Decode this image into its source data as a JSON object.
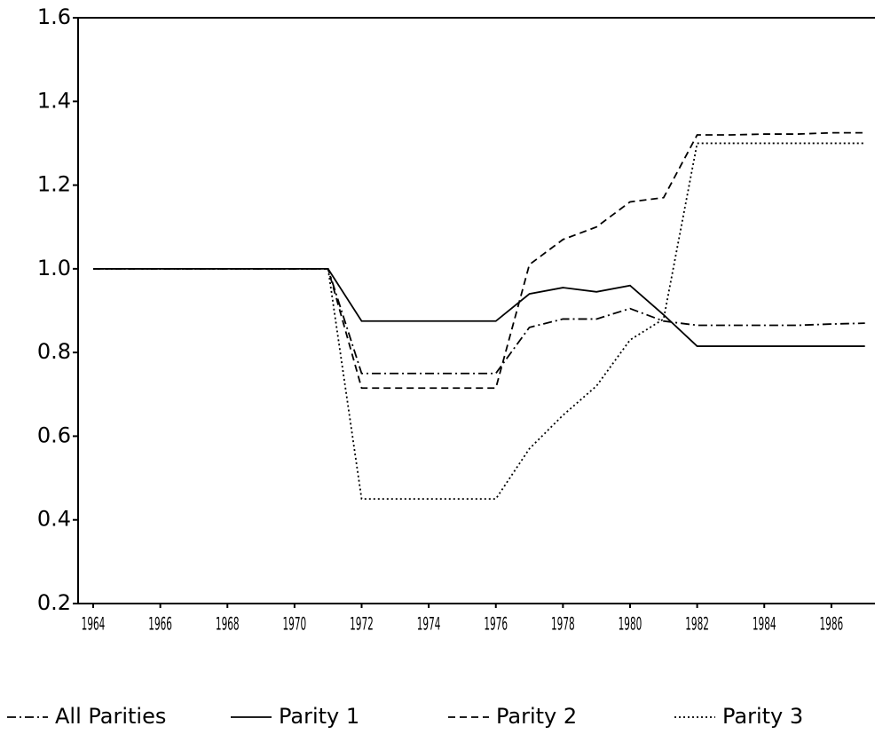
{
  "chart_data": {
    "type": "line",
    "x": [
      1964,
      1965,
      1966,
      1967,
      1968,
      1969,
      1970,
      1971,
      1972,
      1973,
      1974,
      1975,
      1976,
      1977,
      1978,
      1979,
      1980,
      1981,
      1982,
      1983,
      1984,
      1985,
      1986,
      1987
    ],
    "xlim": [
      1963.55,
      1987.3
    ],
    "xticks": [
      1964,
      1966,
      1968,
      1970,
      1972,
      1974,
      1976,
      1978,
      1980,
      1982,
      1984,
      1986
    ],
    "ylim": [
      0.2,
      1.6
    ],
    "yticks": [
      0.2,
      0.4,
      0.6,
      0.8,
      {
        "value": 1,
        "label": "1.0"
      },
      1.2,
      1.4,
      1.6
    ],
    "grid": false,
    "legend": "bottom",
    "series": [
      {
        "name": "All Parities",
        "color": "#000000",
        "dash": "dashdot",
        "values": [
          1,
          1,
          1,
          1,
          1,
          1,
          1,
          1,
          0.75,
          0.75,
          0.75,
          0.75,
          0.75,
          0.86,
          0.88,
          0.88,
          0.905,
          0.875,
          0.865,
          0.865,
          0.865,
          0.865,
          0.868,
          0.87
        ]
      },
      {
        "name": "Parity 1",
        "color": "#000000",
        "dash": "solid",
        "values": [
          1,
          1,
          1,
          1,
          1,
          1,
          1,
          1,
          0.875,
          0.875,
          0.875,
          0.875,
          0.875,
          0.94,
          0.955,
          0.945,
          0.96,
          0.89,
          0.815,
          0.815,
          0.815,
          0.815,
          0.815,
          0.815
        ]
      },
      {
        "name": "Parity 2",
        "color": "#000000",
        "dash": "dashed",
        "values": [
          1,
          1,
          1,
          1,
          1,
          1,
          1,
          1,
          0.715,
          0.715,
          0.715,
          0.715,
          0.715,
          1.01,
          1.07,
          1.1,
          1.16,
          1.17,
          1.32,
          1.32,
          1.322,
          1.322,
          1.325,
          1.325
        ]
      },
      {
        "name": "Parity 3",
        "color": "#000000",
        "dash": "dotted",
        "values": [
          1,
          1,
          1,
          1,
          1,
          1,
          1,
          1,
          0.45,
          0.45,
          0.45,
          0.45,
          0.45,
          0.57,
          0.65,
          0.72,
          0.83,
          0.88,
          1.3,
          1.3,
          1.3,
          1.3,
          1.3,
          1.3
        ]
      }
    ]
  }
}
